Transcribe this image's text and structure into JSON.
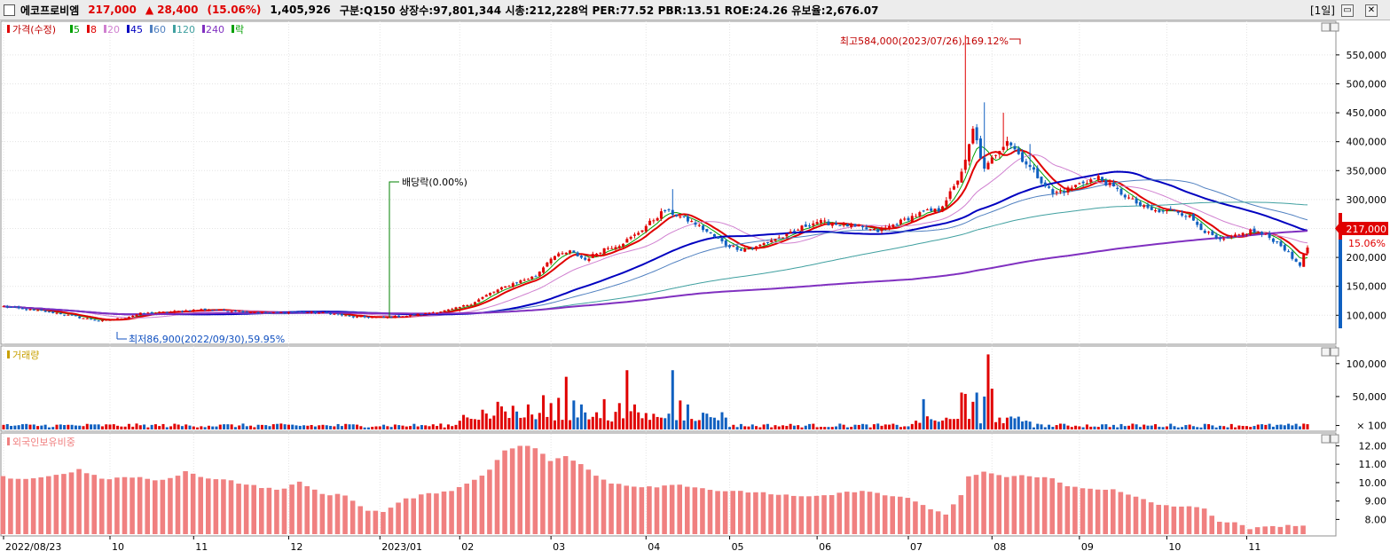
{
  "header": {
    "stock_name": "에코프로비엠",
    "price": "217,000",
    "change_icon": "triangle-up-icon",
    "change_value": "28,400",
    "change_pct": "(15.06%)",
    "volume": "1,405,926",
    "info": "구분:Q150 상장수:97,801,344 시총:212,228억 PER:77.52 PBR:13.51 ROE:24.26 유보율:2,676.07",
    "period": "[1일]"
  },
  "legend": {
    "price_label": "가격(수정)",
    "ma": [
      {
        "label": "5",
        "color": "#00a000"
      },
      {
        "label": "8",
        "color": "#e00000"
      },
      {
        "label": "20",
        "color": "#d080d0"
      },
      {
        "label": "45",
        "color": "#0000c0"
      },
      {
        "label": "60",
        "color": "#5080c0"
      },
      {
        "label": "120",
        "color": "#40a0a0"
      },
      {
        "label": "240",
        "color": "#8030c0"
      }
    ],
    "fall_label": "락",
    "volume_label": "거래량",
    "foreign_label": "외국인보유비중"
  },
  "annotations": {
    "high": "최고584,000(2023/07/26),169.12%",
    "low": "최저86,900(2022/09/30),59.95%",
    "dividend": "배당락(0.00%)",
    "current_price": "217,000",
    "current_pct": "15.06%"
  },
  "chart_data": [
    {
      "type": "candlestick",
      "x_ticks": [
        "2022/08/23",
        "10",
        "11",
        "12",
        "2023/01",
        "02",
        "03",
        "04",
        "05",
        "06",
        "07",
        "08",
        "09",
        "10",
        "11"
      ],
      "y_ticks": [
        "100,000",
        "150,000",
        "200,000",
        "250,000",
        "300,000",
        "350,000",
        "400,000",
        "450,000",
        "500,000",
        "550,000"
      ],
      "ylim": [
        56000,
        605000
      ],
      "high": 584000,
      "low": 86900,
      "last_close": 217000,
      "colors": {
        "up": "#e00000",
        "down": "#1060c0"
      },
      "anchors": [
        [
          0,
          115000
        ],
        [
          6,
          110000
        ],
        [
          14,
          104000
        ],
        [
          20,
          96000
        ],
        [
          26,
          90000
        ],
        [
          32,
          96000
        ],
        [
          36,
          103000
        ],
        [
          44,
          106000
        ],
        [
          52,
          110000
        ],
        [
          60,
          108000
        ],
        [
          70,
          104000
        ],
        [
          78,
          106000
        ],
        [
          86,
          103000
        ],
        [
          92,
          97000
        ],
        [
          100,
          96000
        ],
        [
          106,
          99000
        ],
        [
          112,
          104000
        ],
        [
          118,
          110000
        ],
        [
          123,
          120000
        ],
        [
          128,
          138000
        ],
        [
          134,
          155000
        ],
        [
          140,
          168000
        ],
        [
          144,
          200000
        ],
        [
          149,
          210000
        ],
        [
          153,
          196000
        ],
        [
          158,
          215000
        ],
        [
          162,
          222000
        ],
        [
          166,
          238000
        ],
        [
          170,
          260000
        ],
        [
          174,
          282000
        ],
        [
          178,
          270000
        ],
        [
          182,
          258000
        ],
        [
          186,
          240000
        ],
        [
          190,
          222000
        ],
        [
          194,
          214000
        ],
        [
          198,
          218000
        ],
        [
          202,
          230000
        ],
        [
          206,
          238000
        ],
        [
          210,
          252000
        ],
        [
          214,
          262000
        ],
        [
          218,
          258000
        ],
        [
          222,
          255000
        ],
        [
          226,
          250000
        ],
        [
          230,
          245000
        ],
        [
          234,
          256000
        ],
        [
          238,
          268000
        ],
        [
          242,
          278000
        ],
        [
          246,
          282000
        ],
        [
          250,
          320000
        ],
        [
          253,
          365000
        ],
        [
          255,
          420000
        ],
        [
          256,
          400000
        ],
        [
          258,
          350000
        ],
        [
          261,
          380000
        ],
        [
          264,
          404000
        ],
        [
          268,
          370000
        ],
        [
          272,
          340000
        ],
        [
          276,
          310000
        ],
        [
          280,
          318000
        ],
        [
          284,
          330000
        ],
        [
          288,
          338000
        ],
        [
          292,
          320000
        ],
        [
          296,
          302000
        ],
        [
          300,
          286000
        ],
        [
          304,
          278000
        ],
        [
          308,
          282000
        ],
        [
          312,
          270000
        ],
        [
          316,
          245000
        ],
        [
          320,
          228000
        ],
        [
          324,
          236000
        ],
        [
          328,
          246000
        ],
        [
          332,
          238000
        ],
        [
          336,
          222000
        ],
        [
          339,
          198000
        ],
        [
          341,
          188000
        ],
        [
          343,
          217000
        ]
      ],
      "spikes": [
        [
          253,
          584000
        ],
        [
          258,
          468000
        ],
        [
          263,
          450000
        ],
        [
          270,
          396000
        ],
        [
          176,
          318000
        ],
        [
          120,
          106000
        ]
      ],
      "ma_windows": [
        5,
        8,
        20,
        45,
        60,
        120,
        240
      ],
      "ma_colors": [
        "#00a000",
        "#e00000",
        "#d080d0",
        "#0000c0",
        "#5080c0",
        "#40a0a0",
        "#8030c0"
      ],
      "ma_widths": [
        1,
        2,
        1,
        2,
        1,
        1,
        2
      ]
    },
    {
      "type": "bar",
      "title": "거래량",
      "y_ticks": [
        "100,000",
        "50,000",
        "× 100"
      ],
      "ylim": [
        0,
        124000
      ],
      "big_days": [
        [
          126,
          30000
        ],
        [
          130,
          42000
        ],
        [
          131,
          35000
        ],
        [
          134,
          36000
        ],
        [
          138,
          38000
        ],
        [
          142,
          52000
        ],
        [
          144,
          40000
        ],
        [
          146,
          48000
        ],
        [
          148,
          80000
        ],
        [
          150,
          44000
        ],
        [
          152,
          38000
        ],
        [
          158,
          46000
        ],
        [
          162,
          40000
        ],
        [
          164,
          90000
        ],
        [
          166,
          38000
        ],
        [
          176,
          90000
        ],
        [
          178,
          44000
        ],
        [
          180,
          38000
        ],
        [
          242,
          46000
        ],
        [
          252,
          56000
        ],
        [
          253,
          54000
        ],
        [
          255,
          42000
        ],
        [
          256,
          56000
        ],
        [
          258,
          50000
        ],
        [
          259,
          114000
        ],
        [
          260,
          62000
        ],
        [
          262,
          18000
        ]
      ]
    },
    {
      "type": "bar",
      "title": "외국인보유비중",
      "y_ticks": [
        "12.00",
        "11.00",
        "10.00",
        "9.00",
        "8.00"
      ],
      "ylim": [
        7.2,
        12.6
      ],
      "anchors": [
        [
          0,
          10.3
        ],
        [
          6,
          10.2
        ],
        [
          14,
          10.4
        ],
        [
          20,
          10.7
        ],
        [
          26,
          10.2
        ],
        [
          34,
          10.3
        ],
        [
          42,
          10.1
        ],
        [
          48,
          10.6
        ],
        [
          52,
          10.3
        ],
        [
          58,
          10.2
        ],
        [
          64,
          9.9
        ],
        [
          72,
          9.6
        ],
        [
          78,
          10.0
        ],
        [
          84,
          9.4
        ],
        [
          90,
          9.3
        ],
        [
          96,
          8.5
        ],
        [
          100,
          8.4
        ],
        [
          106,
          9.1
        ],
        [
          112,
          9.4
        ],
        [
          118,
          9.6
        ],
        [
          123,
          10.0
        ],
        [
          128,
          10.7
        ],
        [
          132,
          11.8
        ],
        [
          136,
          12.0
        ],
        [
          140,
          11.9
        ],
        [
          144,
          11.2
        ],
        [
          148,
          11.4
        ],
        [
          152,
          11.0
        ],
        [
          156,
          10.4
        ],
        [
          160,
          10.0
        ],
        [
          166,
          9.8
        ],
        [
          172,
          9.8
        ],
        [
          178,
          9.9
        ],
        [
          184,
          9.7
        ],
        [
          190,
          9.5
        ],
        [
          198,
          9.5
        ],
        [
          206,
          9.3
        ],
        [
          212,
          9.2
        ],
        [
          220,
          9.4
        ],
        [
          226,
          9.6
        ],
        [
          232,
          9.3
        ],
        [
          238,
          9.2
        ],
        [
          244,
          8.5
        ],
        [
          248,
          8.3
        ],
        [
          252,
          9.3
        ],
        [
          254,
          10.3
        ],
        [
          258,
          10.6
        ],
        [
          264,
          10.3
        ],
        [
          270,
          10.4
        ],
        [
          276,
          10.2
        ],
        [
          280,
          9.8
        ],
        [
          286,
          9.7
        ],
        [
          292,
          9.6
        ],
        [
          298,
          9.2
        ],
        [
          304,
          8.8
        ],
        [
          310,
          8.7
        ],
        [
          316,
          8.6
        ],
        [
          320,
          7.9
        ],
        [
          324,
          7.8
        ],
        [
          328,
          7.5
        ],
        [
          334,
          7.6
        ],
        [
          338,
          7.7
        ],
        [
          343,
          7.6
        ]
      ],
      "color": "#f08080"
    }
  ]
}
